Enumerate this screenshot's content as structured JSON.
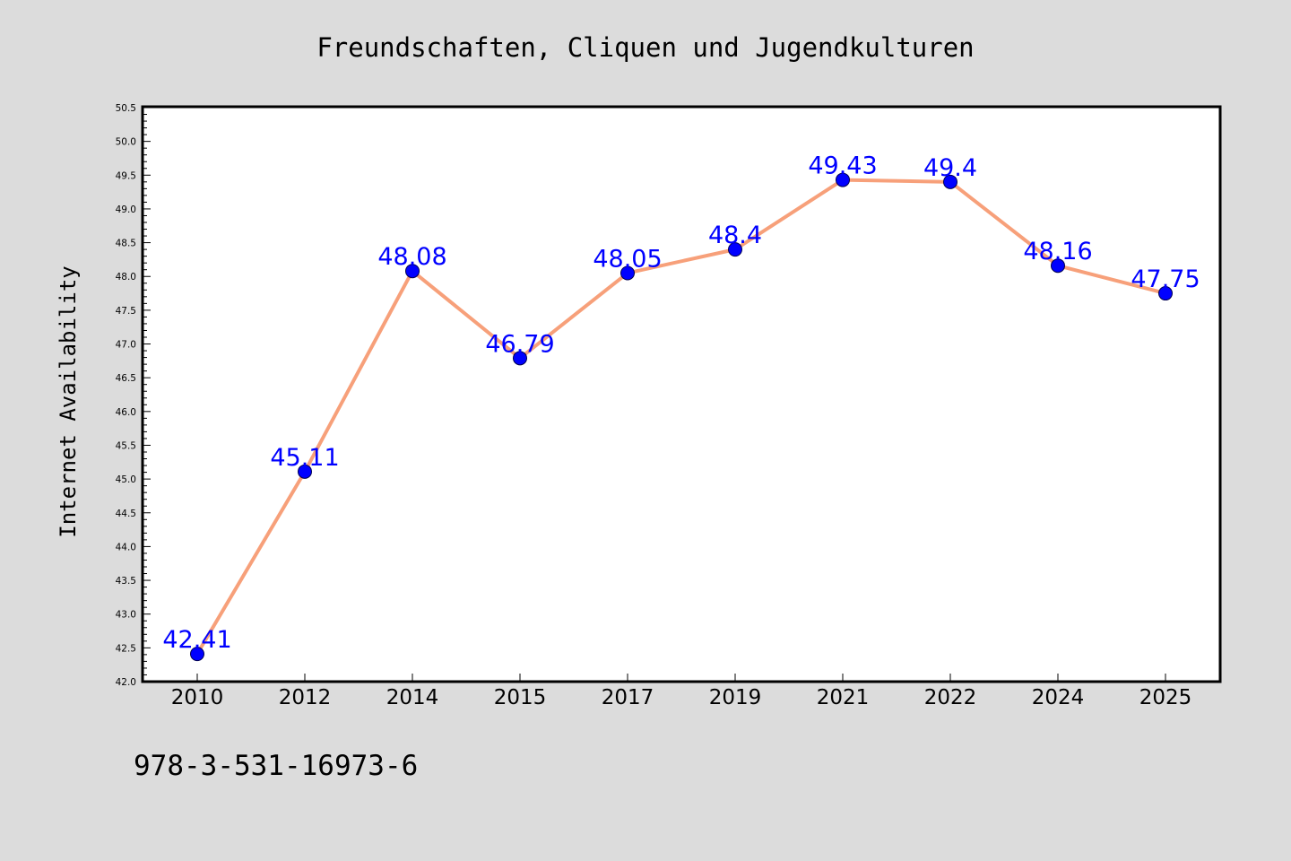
{
  "colors": {
    "background": "#dcdcdc",
    "plot_background": "#ffffff",
    "line": "#f7a07a",
    "marker": "#0000ff",
    "label": "#0000ff"
  },
  "footer": {
    "isbn": "978-3-531-16973-6"
  },
  "chart_data": {
    "type": "line",
    "title": "Freundschaften, Cliquen und Jugendkulturen",
    "xlabel": "",
    "ylabel": "Internet Availability",
    "ylim": [
      42.0,
      50.5
    ],
    "grid": false,
    "legend": "none",
    "categories": [
      "2010",
      "2012",
      "2014",
      "2015",
      "2017",
      "2019",
      "2021",
      "2022",
      "2024",
      "2025"
    ],
    "yticks": [
      "42.0",
      "42.5",
      "43.0",
      "43.5",
      "44.0",
      "44.5",
      "45.0",
      "45.5",
      "46.0",
      "46.5",
      "47.0",
      "47.5",
      "48.0",
      "48.5",
      "49.0",
      "49.5",
      "50.0",
      "50.5"
    ],
    "series": [
      {
        "values": [
          42.41,
          45.11,
          48.08,
          46.79,
          48.05,
          48.4,
          49.43,
          49.4,
          48.16,
          47.75
        ],
        "labels": [
          "42.41",
          "45.11",
          "48.08",
          "46.79",
          "48.05",
          "48.4",
          "49.43",
          "49.4",
          "48.16",
          "47.75"
        ]
      }
    ]
  }
}
